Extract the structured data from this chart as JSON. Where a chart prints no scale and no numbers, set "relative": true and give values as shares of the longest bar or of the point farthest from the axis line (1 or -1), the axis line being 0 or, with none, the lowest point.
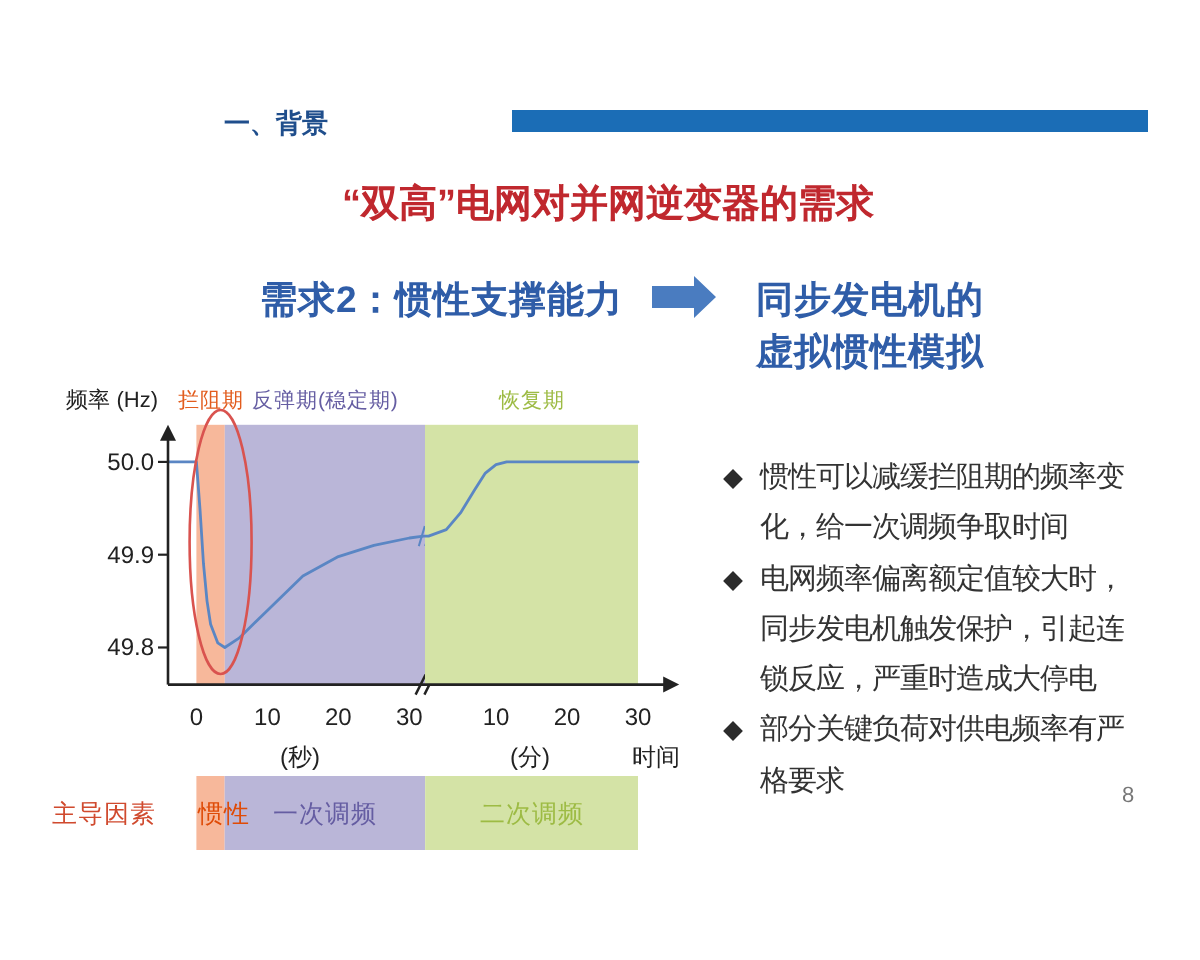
{
  "chart_data": [
    {
      "type": "line",
      "title": "“双高”电网对并网逆变器的需求",
      "subtitle": "需求2：惯性支撑能力",
      "ylabel": "频率 (Hz)",
      "xlabel": "(秒)",
      "annotations": [
        "一、背景",
        "同步发电机的虚拟惯性模拟",
        "8"
      ],
      "x": [
        -4,
        0,
        0.5,
        1,
        1.5,
        2,
        3,
        4,
        6,
        8,
        10,
        15,
        20,
        25,
        30,
        32
      ],
      "series": [
        {
          "color": "#5a86c4",
          "values": [
            50,
            50,
            49.95,
            49.89,
            49.85,
            49.825,
            49.805,
            49.8,
            49.81,
            49.825,
            49.84,
            49.877,
            49.898,
            49.91,
            49.918,
            49.92
          ]
        }
      ],
      "xlim": [
        -4,
        32.2
      ],
      "ylim": [
        49.76,
        50.04
      ],
      "xticks": [
        0,
        10,
        20,
        30
      ],
      "yticks": [
        49.8,
        49.9,
        {
          "value": 50,
          "label": "50.0"
        }
      ],
      "bands": [
        {
          "axis": "x",
          "from": 0,
          "to": 4,
          "label": "拦阻期",
          "color": "#f7b89b"
        },
        {
          "axis": "x",
          "from": 4,
          "to": 32.2,
          "label": "反弹期(稳定期)",
          "color": "#bab6d8"
        }
      ],
      "line_style": "solid"
    },
    {
      "type": "line",
      "xlabel": "(分)",
      "annotations": [
        "时间"
      ],
      "x": [
        0,
        0.5,
        3,
        5,
        7,
        8.5,
        10,
        11.5,
        20,
        30
      ],
      "series": [
        {
          "color": "#5a86c4",
          "values": [
            49.92,
            49.92,
            49.927,
            49.945,
            49.97,
            49.988,
            49.997,
            50,
            50,
            50
          ]
        }
      ],
      "xlim": [
        0,
        35.8
      ],
      "ylim": [
        49.76,
        50.04
      ],
      "xticks": [
        10,
        20,
        30
      ],
      "bands": [
        {
          "axis": "x",
          "from": 0,
          "to": 30,
          "label": "恢复期",
          "color": "#d4e3a6"
        }
      ],
      "tick_labels": "x",
      "line_style": "solid"
    },
    {
      "type": "bar",
      "orientation": "horizontal",
      "stacked": true,
      "relative": true,
      "categories": [
        "主导因素"
      ],
      "series": [
        {
          "name": "惯性",
          "color": "#f7b89b",
          "values": [
            0.064
          ]
        },
        {
          "name": "一次调频",
          "color": "#bab6d8",
          "values": [
            0.454
          ]
        },
        {
          "name": "二次调频",
          "color": "#d4e3a6",
          "values": [
            0.482
          ]
        }
      ]
    },
    {
      "type": "other",
      "annotations": [
        "惯性可以减缓拦阻期的频率变化，给一次调频争取时间",
        "电网频率偏离额定值较大时，同步发电机触发保护，引起连锁反应，严重时造成大停电",
        "部分关键负荷对供电频率有严格要求"
      ]
    }
  ]
}
